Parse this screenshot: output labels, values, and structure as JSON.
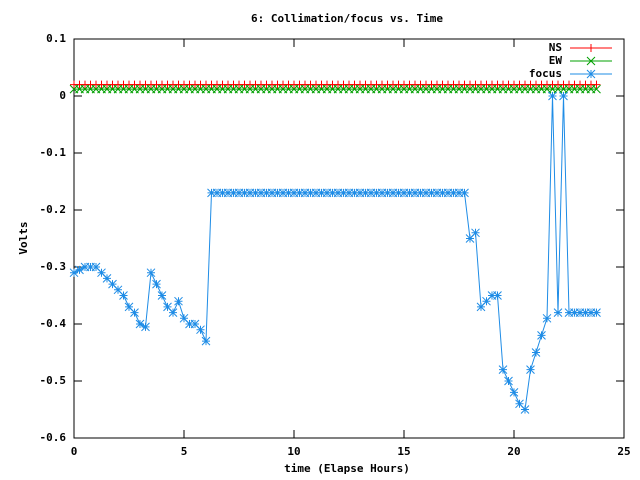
{
  "chart_data": {
    "type": "line",
    "title": "6: Collimation/focus vs. Time",
    "x_label": "time (Elapse Hours)",
    "y_label": "Volts",
    "x": [
      0,
      0.25,
      0.5,
      0.75,
      1,
      1.25,
      1.5,
      1.75,
      2,
      2.25,
      2.5,
      2.75,
      3,
      3.25,
      3.5,
      3.75,
      4,
      4.25,
      4.5,
      4.75,
      5,
      5.25,
      5.5,
      5.75,
      6,
      6.25,
      6.5,
      6.75,
      7,
      7.25,
      7.5,
      7.75,
      8,
      8.25,
      8.5,
      8.75,
      9,
      9.25,
      9.5,
      9.75,
      10,
      10.25,
      10.5,
      10.75,
      11,
      11.25,
      11.5,
      11.75,
      12,
      12.25,
      12.5,
      12.75,
      13,
      13.25,
      13.5,
      13.75,
      14,
      14.25,
      14.5,
      14.75,
      15,
      15.25,
      15.5,
      15.75,
      16,
      16.25,
      16.5,
      16.75,
      17,
      17.25,
      17.5,
      17.75,
      18,
      18.25,
      18.5,
      18.75,
      19,
      19.25,
      19.5,
      19.75,
      20,
      20.25,
      20.5,
      20.75,
      21,
      21.25,
      21.5,
      21.75,
      22,
      22.25,
      22.5,
      22.75,
      23,
      23.25,
      23.5,
      23.75
    ],
    "series": [
      {
        "name": "NS",
        "color": "#ff0000",
        "marker": "plus",
        "values": [
          0.02,
          0.02,
          0.02,
          0.02,
          0.02,
          0.02,
          0.02,
          0.02,
          0.02,
          0.02,
          0.02,
          0.02,
          0.02,
          0.02,
          0.02,
          0.02,
          0.02,
          0.02,
          0.02,
          0.02,
          0.02,
          0.02,
          0.02,
          0.02,
          0.02,
          0.02,
          0.02,
          0.02,
          0.02,
          0.02,
          0.02,
          0.02,
          0.02,
          0.02,
          0.02,
          0.02,
          0.02,
          0.02,
          0.02,
          0.02,
          0.02,
          0.02,
          0.02,
          0.02,
          0.02,
          0.02,
          0.02,
          0.02,
          0.02,
          0.02,
          0.02,
          0.02,
          0.02,
          0.02,
          0.02,
          0.02,
          0.02,
          0.02,
          0.02,
          0.02,
          0.02,
          0.02,
          0.02,
          0.02,
          0.02,
          0.02,
          0.02,
          0.02,
          0.02,
          0.02,
          0.02,
          0.02,
          0.02,
          0.02,
          0.02,
          0.02,
          0.02,
          0.02,
          0.02,
          0.02,
          0.02,
          0.02,
          0.02,
          0.02,
          0.02,
          0.02,
          0.02,
          0.02,
          0.02,
          0.02,
          0.02,
          0.02,
          0.02,
          0.02,
          0.02,
          0.02
        ]
      },
      {
        "name": "EW",
        "color": "#00a000",
        "marker": "cross",
        "values": [
          0.012,
          0.012,
          0.012,
          0.012,
          0.012,
          0.012,
          0.012,
          0.012,
          0.012,
          0.012,
          0.012,
          0.012,
          0.012,
          0.012,
          0.012,
          0.012,
          0.012,
          0.012,
          0.012,
          0.012,
          0.012,
          0.012,
          0.012,
          0.012,
          0.012,
          0.012,
          0.012,
          0.012,
          0.012,
          0.012,
          0.012,
          0.012,
          0.012,
          0.012,
          0.012,
          0.012,
          0.012,
          0.012,
          0.012,
          0.012,
          0.012,
          0.012,
          0.012,
          0.012,
          0.012,
          0.012,
          0.012,
          0.012,
          0.012,
          0.012,
          0.012,
          0.012,
          0.012,
          0.012,
          0.012,
          0.012,
          0.012,
          0.012,
          0.012,
          0.012,
          0.012,
          0.012,
          0.012,
          0.012,
          0.012,
          0.012,
          0.012,
          0.012,
          0.012,
          0.012,
          0.012,
          0.012,
          0.012,
          0.012,
          0.012,
          0.012,
          0.012,
          0.012,
          0.012,
          0.012,
          0.012,
          0.012,
          0.012,
          0.012,
          0.012,
          0.012,
          0.012,
          0.012,
          0.012,
          0.012,
          0.012,
          0.012,
          0.012,
          0.012,
          0.012,
          0.012
        ]
      },
      {
        "name": "focus",
        "color": "#1e8ce6",
        "marker": "star",
        "values": [
          -0.31,
          -0.305,
          -0.3,
          -0.3,
          -0.3,
          -0.31,
          -0.32,
          -0.33,
          -0.34,
          -0.35,
          -0.37,
          -0.38,
          -0.4,
          -0.405,
          -0.31,
          -0.33,
          -0.35,
          -0.37,
          -0.38,
          -0.36,
          -0.39,
          -0.4,
          -0.4,
          -0.41,
          -0.43,
          -0.17,
          -0.17,
          -0.17,
          -0.17,
          -0.17,
          -0.17,
          -0.17,
          -0.17,
          -0.17,
          -0.17,
          -0.17,
          -0.17,
          -0.17,
          -0.17,
          -0.17,
          -0.17,
          -0.17,
          -0.17,
          -0.17,
          -0.17,
          -0.17,
          -0.17,
          -0.17,
          -0.17,
          -0.17,
          -0.17,
          -0.17,
          -0.17,
          -0.17,
          -0.17,
          -0.17,
          -0.17,
          -0.17,
          -0.17,
          -0.17,
          -0.17,
          -0.17,
          -0.17,
          -0.17,
          -0.17,
          -0.17,
          -0.17,
          -0.17,
          -0.17,
          -0.17,
          -0.17,
          -0.17,
          -0.25,
          -0.24,
          -0.37,
          -0.36,
          -0.35,
          -0.35,
          -0.48,
          -0.5,
          -0.52,
          -0.54,
          -0.55,
          -0.48,
          -0.45,
          -0.42,
          -0.39,
          0,
          -0.38,
          0,
          -0.38,
          -0.38,
          -0.38,
          -0.38,
          -0.38,
          -0.38
        ]
      }
    ],
    "xlim": [
      0,
      25
    ],
    "xticks": [
      0,
      5,
      10,
      15,
      20,
      25
    ],
    "ylim": [
      -0.6,
      0.1
    ],
    "yticks": [
      0.1,
      0,
      -0.1,
      -0.2,
      -0.3,
      -0.4,
      -0.5,
      -0.6
    ],
    "legend": "top-right"
  }
}
